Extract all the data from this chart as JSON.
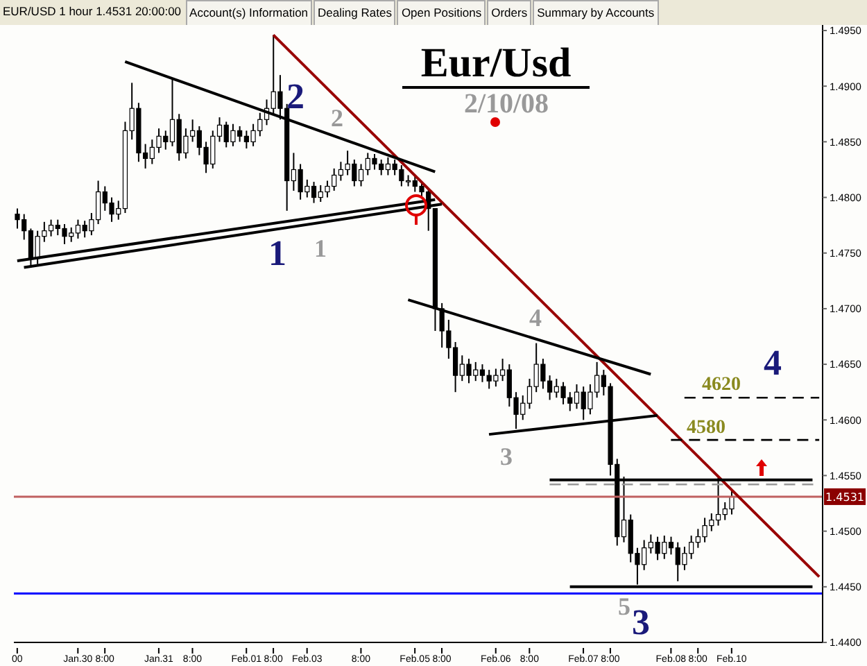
{
  "chart_data": {
    "type": "candlestick",
    "title": "Eur/Usd",
    "subtitle": "2/10/08",
    "color": "#000000",
    "categories": [
      "00",
      null,
      null,
      null,
      null,
      null,
      null,
      null,
      null,
      "Jan.30",
      null,
      null,
      null,
      "8:00",
      null,
      null,
      null,
      null,
      null,
      null,
      null,
      "Jan.31",
      null,
      null,
      null,
      null,
      "8:00",
      null,
      null,
      null,
      null,
      null,
      null,
      null,
      "Feb.01",
      null,
      null,
      null,
      "8:00",
      null,
      null,
      null,
      null,
      "Feb.03",
      null,
      null,
      null,
      null,
      null,
      null,
      null,
      "8:00",
      null,
      null,
      null,
      null,
      null,
      null,
      null,
      "Feb.05",
      null,
      null,
      null,
      "8:00",
      null,
      null,
      null,
      null,
      null,
      null,
      null,
      "Feb.06",
      null,
      null,
      null,
      null,
      "8:00",
      null,
      null,
      null,
      null,
      null,
      null,
      null,
      "Feb.07",
      null,
      null,
      null,
      "8:00",
      null,
      null,
      null,
      null,
      null,
      null,
      null,
      null,
      "Feb.08",
      null,
      null,
      null,
      "8:00",
      null,
      null,
      null,
      null,
      "Feb.10",
      null,
      null,
      null,
      null,
      null,
      null,
      null,
      null,
      null,
      null,
      null,
      null,
      null
    ],
    "ohlc": [
      [
        1.4785,
        1.479,
        1.4772,
        1.478
      ],
      [
        1.478,
        1.4785,
        1.4762,
        1.477
      ],
      [
        1.477,
        1.4772,
        1.4737,
        1.4745
      ],
      [
        1.4745,
        1.477,
        1.474,
        1.4765
      ],
      [
        1.4765,
        1.4778,
        1.476,
        1.477
      ],
      [
        1.477,
        1.478,
        1.4765,
        1.4775
      ],
      [
        1.4775,
        1.478,
        1.4766,
        1.4772
      ],
      [
        1.4772,
        1.4776,
        1.4758,
        1.4765
      ],
      [
        1.4765,
        1.4773,
        1.476,
        1.4768
      ],
      [
        1.4768,
        1.478,
        1.4763,
        1.4775
      ],
      [
        1.4775,
        1.4779,
        1.4764,
        1.477
      ],
      [
        1.477,
        1.4786,
        1.4766,
        1.478
      ],
      [
        1.478,
        1.4815,
        1.4776,
        1.4805
      ],
      [
        1.4805,
        1.481,
        1.4788,
        1.4795
      ],
      [
        1.4795,
        1.48,
        1.4778,
        1.4785
      ],
      [
        1.4785,
        1.4797,
        1.478,
        1.479
      ],
      [
        1.479,
        1.4868,
        1.4786,
        1.486
      ],
      [
        1.486,
        1.4903,
        1.4852,
        1.488
      ],
      [
        1.488,
        1.4885,
        1.4832,
        1.484
      ],
      [
        1.484,
        1.4848,
        1.4826,
        1.4835
      ],
      [
        1.4835,
        1.4852,
        1.483,
        1.4845
      ],
      [
        1.4845,
        1.4862,
        1.484,
        1.4855
      ],
      [
        1.4855,
        1.486,
        1.4843,
        1.485
      ],
      [
        1.485,
        1.4907,
        1.4846,
        1.487
      ],
      [
        1.487,
        1.4875,
        1.4833,
        1.484
      ],
      [
        1.484,
        1.4862,
        1.4835,
        1.4855
      ],
      [
        1.4855,
        1.487,
        1.485,
        1.486
      ],
      [
        1.486,
        1.4864,
        1.4838,
        1.4845
      ],
      [
        1.4845,
        1.485,
        1.4822,
        1.483
      ],
      [
        1.483,
        1.486,
        1.4826,
        1.4855
      ],
      [
        1.4855,
        1.4872,
        1.485,
        1.4865
      ],
      [
        1.4865,
        1.4868,
        1.4845,
        1.485
      ],
      [
        1.485,
        1.4866,
        1.4846,
        1.486
      ],
      [
        1.486,
        1.4864,
        1.485,
        1.4855
      ],
      [
        1.4855,
        1.486,
        1.4844,
        1.485
      ],
      [
        1.485,
        1.4866,
        1.4846,
        1.486
      ],
      [
        1.486,
        1.4876,
        1.4855,
        1.487
      ],
      [
        1.487,
        1.4888,
        1.4865,
        1.488
      ],
      [
        1.488,
        1.4946,
        1.4875,
        1.4895
      ],
      [
        1.4895,
        1.491,
        1.487,
        1.488
      ],
      [
        1.488,
        1.4884,
        1.4788,
        1.4815
      ],
      [
        1.4815,
        1.484,
        1.4806,
        1.4825
      ],
      [
        1.4825,
        1.483,
        1.4798,
        1.4805
      ],
      [
        1.4805,
        1.4816,
        1.48,
        1.481
      ],
      [
        1.481,
        1.4814,
        1.4795,
        1.48
      ],
      [
        1.48,
        1.4811,
        1.4796,
        1.4805
      ],
      [
        1.4805,
        1.4815,
        1.48,
        1.481
      ],
      [
        1.481,
        1.4826,
        1.4806,
        1.482
      ],
      [
        1.482,
        1.4832,
        1.4815,
        1.4825
      ],
      [
        1.4825,
        1.4842,
        1.482,
        1.483
      ],
      [
        1.483,
        1.4834,
        1.481,
        1.4815
      ],
      [
        1.4815,
        1.483,
        1.481,
        1.4825
      ],
      [
        1.4825,
        1.484,
        1.482,
        1.4835
      ],
      [
        1.4835,
        1.4839,
        1.4825,
        1.483
      ],
      [
        1.483,
        1.4834,
        1.482,
        1.4825
      ],
      [
        1.4825,
        1.4836,
        1.482,
        1.483
      ],
      [
        1.483,
        1.4834,
        1.482,
        1.4825
      ],
      [
        1.4825,
        1.4829,
        1.481,
        1.4815
      ],
      [
        1.4815,
        1.482,
        1.481,
        1.4815
      ],
      [
        1.4815,
        1.4819,
        1.4805,
        1.481
      ],
      [
        1.481,
        1.4814,
        1.48,
        1.4805
      ],
      [
        1.4805,
        1.4808,
        1.477,
        1.479
      ],
      [
        1.479,
        1.479,
        1.468,
        1.47
      ],
      [
        1.47,
        1.4705,
        1.4665,
        1.468
      ],
      [
        1.468,
        1.469,
        1.4655,
        1.4665
      ],
      [
        1.4665,
        1.467,
        1.4625,
        1.464
      ],
      [
        1.464,
        1.4658,
        1.4635,
        1.465
      ],
      [
        1.465,
        1.4655,
        1.4633,
        1.464
      ],
      [
        1.464,
        1.4652,
        1.4635,
        1.4645
      ],
      [
        1.4645,
        1.465,
        1.4634,
        1.464
      ],
      [
        1.464,
        1.4645,
        1.4628,
        1.4635
      ],
      [
        1.4635,
        1.4646,
        1.463,
        1.464
      ],
      [
        1.464,
        1.4655,
        1.4635,
        1.4645
      ],
      [
        1.4645,
        1.465,
        1.4612,
        1.462
      ],
      [
        1.462,
        1.4625,
        1.4592,
        1.4605
      ],
      [
        1.4605,
        1.4622,
        1.46,
        1.4615
      ],
      [
        1.4615,
        1.4637,
        1.461,
        1.463
      ],
      [
        1.463,
        1.4669,
        1.4625,
        1.465
      ],
      [
        1.465,
        1.4655,
        1.4628,
        1.4635
      ],
      [
        1.4635,
        1.464,
        1.4618,
        1.4625
      ],
      [
        1.4625,
        1.4637,
        1.462,
        1.463
      ],
      [
        1.463,
        1.4634,
        1.4614,
        1.462
      ],
      [
        1.462,
        1.4625,
        1.4608,
        1.4615
      ],
      [
        1.4615,
        1.4632,
        1.461,
        1.4625
      ],
      [
        1.4625,
        1.463,
        1.46,
        1.461
      ],
      [
        1.461,
        1.4632,
        1.4605,
        1.4625
      ],
      [
        1.4625,
        1.4652,
        1.462,
        1.464
      ],
      [
        1.464,
        1.4645,
        1.4622,
        1.463
      ],
      [
        1.463,
        1.4633,
        1.455,
        1.456
      ],
      [
        1.456,
        1.4565,
        1.4487,
        1.4495
      ],
      [
        1.4495,
        1.4549,
        1.449,
        1.451
      ],
      [
        1.451,
        1.4515,
        1.4472,
        1.448
      ],
      [
        1.448,
        1.4485,
        1.4452,
        1.447
      ],
      [
        1.447,
        1.4492,
        1.4465,
        1.4485
      ],
      [
        1.4485,
        1.4497,
        1.448,
        1.449
      ],
      [
        1.449,
        1.4495,
        1.4474,
        1.448
      ],
      [
        1.448,
        1.4496,
        1.4475,
        1.449
      ],
      [
        1.449,
        1.4495,
        1.4479,
        1.4485
      ],
      [
        1.4485,
        1.449,
        1.4455,
        1.447
      ],
      [
        1.447,
        1.4486,
        1.4465,
        1.448
      ],
      [
        1.448,
        1.4496,
        1.4475,
        1.449
      ],
      [
        1.449,
        1.4502,
        1.4485,
        1.4495
      ],
      [
        1.4495,
        1.4512,
        1.449,
        1.4505
      ],
      [
        1.4505,
        1.4516,
        1.45,
        1.451
      ],
      [
        1.451,
        1.4548,
        1.4505,
        1.4515
      ],
      [
        1.4515,
        1.4526,
        1.451,
        1.452
      ],
      [
        1.452,
        1.4536,
        1.4515,
        1.4531
      ],
      null,
      null,
      null,
      null,
      null,
      null,
      null,
      null,
      null,
      null,
      null,
      null,
      null
    ],
    "series": [
      {
        "type": "line",
        "color": "#990000",
        "line_style": "solid",
        "values": [
          null,
          null,
          null,
          null,
          null,
          null,
          null,
          null,
          null,
          null,
          null,
          null,
          null,
          null,
          null,
          null,
          null,
          null,
          null,
          null,
          null,
          null,
          null,
          null,
          null,
          null,
          null,
          null,
          null,
          null,
          null,
          null,
          null,
          null,
          null,
          null,
          null,
          null,
          1.4946,
          null,
          null,
          null,
          null,
          null,
          null,
          null,
          null,
          null,
          null,
          null,
          null,
          null,
          null,
          null,
          null,
          null,
          null,
          null,
          null,
          null,
          null,
          null,
          null,
          null,
          null,
          null,
          null,
          null,
          null,
          null,
          null,
          null,
          null,
          null,
          null,
          null,
          null,
          null,
          null,
          null,
          null,
          null,
          null,
          null,
          null,
          null,
          null,
          null,
          null,
          null,
          null,
          null,
          null,
          null,
          null,
          null,
          null,
          null,
          null,
          null,
          null,
          null,
          null,
          null,
          null,
          null,
          null,
          null,
          null,
          null,
          null,
          null,
          null,
          null,
          null,
          null,
          null,
          null,
          null,
          1.4459
        ]
      },
      {
        "type": "line",
        "color": "#000000",
        "line_style": "solid",
        "values": [
          null,
          null,
          null,
          null,
          null,
          null,
          null,
          null,
          null,
          null,
          null,
          null,
          null,
          null,
          null,
          null,
          1.4922,
          null,
          null,
          null,
          null,
          null,
          null,
          null,
          null,
          null,
          null,
          null,
          null,
          null,
          null,
          null,
          null,
          null,
          null,
          null,
          null,
          null,
          null,
          null,
          null,
          null,
          null,
          null,
          null,
          null,
          null,
          null,
          null,
          null,
          null,
          null,
          null,
          null,
          null,
          null,
          null,
          null,
          null,
          null,
          null,
          null,
          1.4823,
          null,
          null,
          null,
          null,
          null,
          null,
          null,
          null,
          null,
          null,
          null,
          null,
          null,
          null,
          null,
          null,
          null,
          null,
          null,
          null,
          null,
          null,
          null,
          null,
          null,
          null,
          null,
          null,
          null,
          null,
          null,
          null,
          null,
          null,
          null,
          null,
          null,
          null,
          null,
          null,
          null,
          null,
          null,
          null,
          null,
          null,
          null,
          null,
          null,
          null,
          null,
          null,
          null,
          null,
          null,
          null,
          null
        ]
      },
      {
        "type": "line",
        "color": "#000000",
        "line_style": "solid",
        "values": [
          1.4743,
          null,
          null,
          null,
          null,
          null,
          null,
          null,
          null,
          null,
          null,
          null,
          null,
          null,
          null,
          null,
          null,
          null,
          null,
          null,
          null,
          null,
          null,
          null,
          null,
          null,
          null,
          null,
          null,
          null,
          null,
          null,
          null,
          null,
          null,
          null,
          null,
          null,
          null,
          null,
          null,
          null,
          null,
          null,
          null,
          null,
          null,
          null,
          null,
          null,
          null,
          null,
          null,
          null,
          null,
          null,
          null,
          null,
          null,
          null,
          null,
          null,
          1.4798,
          null,
          null,
          null,
          null,
          null,
          null,
          null,
          null,
          null,
          null,
          null,
          null,
          null,
          null,
          null,
          null,
          null,
          null,
          null,
          null,
          null,
          null,
          null,
          null,
          null,
          null,
          null,
          null,
          null,
          null,
          null,
          null,
          null,
          null,
          null,
          null,
          null,
          null,
          null,
          null,
          null,
          null,
          null,
          null,
          null,
          null,
          null,
          null,
          null,
          null,
          null,
          null,
          null,
          null,
          null,
          null,
          null
        ]
      },
      {
        "type": "line",
        "color": "#000000",
        "line_style": "solid",
        "values": [
          null,
          1.4737,
          null,
          null,
          null,
          null,
          null,
          null,
          null,
          null,
          null,
          null,
          null,
          null,
          null,
          null,
          null,
          null,
          null,
          null,
          null,
          null,
          null,
          null,
          null,
          null,
          null,
          null,
          null,
          null,
          null,
          null,
          null,
          null,
          null,
          null,
          null,
          null,
          null,
          null,
          null,
          null,
          null,
          null,
          null,
          null,
          null,
          null,
          null,
          null,
          null,
          null,
          null,
          null,
          null,
          null,
          null,
          null,
          null,
          null,
          null,
          null,
          null,
          1.4794,
          null,
          null,
          null,
          null,
          null,
          null,
          null,
          null,
          null,
          null,
          null,
          null,
          null,
          null,
          null,
          null,
          null,
          null,
          null,
          null,
          null,
          null,
          null,
          null,
          null,
          null,
          null,
          null,
          null,
          null,
          null,
          null,
          null,
          null,
          null,
          null,
          null,
          null,
          null,
          null,
          null,
          null,
          null,
          null,
          null,
          null,
          null,
          null,
          null,
          null,
          null,
          null,
          null,
          null,
          null,
          null
        ]
      },
      {
        "type": "line",
        "color": "#000000",
        "line_style": "solid",
        "values": [
          null,
          null,
          null,
          null,
          null,
          null,
          null,
          null,
          null,
          null,
          null,
          null,
          null,
          null,
          null,
          null,
          null,
          null,
          null,
          null,
          null,
          null,
          null,
          null,
          null,
          null,
          null,
          null,
          null,
          null,
          null,
          null,
          null,
          null,
          null,
          null,
          null,
          null,
          null,
          null,
          null,
          null,
          null,
          null,
          null,
          null,
          null,
          null,
          null,
          null,
          null,
          null,
          null,
          null,
          null,
          null,
          null,
          null,
          1.4708,
          null,
          null,
          null,
          null,
          null,
          null,
          null,
          null,
          null,
          null,
          null,
          null,
          null,
          null,
          null,
          null,
          null,
          null,
          null,
          null,
          null,
          null,
          null,
          null,
          null,
          null,
          null,
          null,
          null,
          null,
          null,
          null,
          null,
          null,
          null,
          1.4641,
          null,
          null,
          null,
          null,
          null,
          null,
          null,
          null,
          null,
          null,
          null,
          null,
          null,
          null,
          null,
          null,
          null,
          null,
          null,
          null,
          null,
          null,
          null,
          null,
          null
        ]
      },
      {
        "type": "line",
        "color": "#000000",
        "line_style": "solid",
        "values": [
          null,
          null,
          null,
          null,
          null,
          null,
          null,
          null,
          null,
          null,
          null,
          null,
          null,
          null,
          null,
          null,
          null,
          null,
          null,
          null,
          null,
          null,
          null,
          null,
          null,
          null,
          null,
          null,
          null,
          null,
          null,
          null,
          null,
          null,
          null,
          null,
          null,
          null,
          null,
          null,
          null,
          null,
          null,
          null,
          null,
          null,
          null,
          null,
          null,
          null,
          null,
          null,
          null,
          null,
          null,
          null,
          null,
          null,
          null,
          null,
          null,
          null,
          null,
          null,
          null,
          null,
          null,
          null,
          null,
          null,
          1.4587,
          null,
          null,
          null,
          null,
          null,
          null,
          null,
          null,
          null,
          null,
          null,
          null,
          null,
          null,
          null,
          null,
          null,
          null,
          null,
          null,
          null,
          null,
          null,
          null,
          1.4604,
          null,
          null,
          null,
          null,
          null,
          null,
          null,
          null,
          null,
          null,
          null,
          null,
          null,
          null,
          null,
          null,
          null,
          null,
          null,
          null,
          null,
          null,
          null,
          null
        ]
      },
      {
        "type": "line",
        "color": "#000000",
        "line_style": "solid",
        "values": [
          null,
          null,
          null,
          null,
          null,
          null,
          null,
          null,
          null,
          null,
          null,
          null,
          null,
          null,
          null,
          null,
          null,
          null,
          null,
          null,
          null,
          null,
          null,
          null,
          null,
          null,
          null,
          null,
          null,
          null,
          null,
          null,
          null,
          null,
          null,
          null,
          null,
          null,
          null,
          null,
          null,
          null,
          null,
          null,
          null,
          null,
          null,
          null,
          null,
          null,
          null,
          null,
          null,
          null,
          null,
          null,
          null,
          null,
          null,
          null,
          null,
          null,
          null,
          null,
          null,
          null,
          null,
          null,
          null,
          null,
          null,
          null,
          null,
          null,
          null,
          null,
          null,
          null,
          null,
          1.4546,
          null,
          null,
          null,
          null,
          null,
          null,
          null,
          null,
          null,
          null,
          null,
          null,
          null,
          null,
          null,
          null,
          null,
          null,
          null,
          null,
          null,
          null,
          null,
          null,
          null,
          null,
          null,
          null,
          null,
          null,
          null,
          null,
          null,
          null,
          null,
          null,
          null,
          null,
          1.4546,
          null
        ]
      },
      {
        "type": "line",
        "color": "#999999",
        "line_style": "dashed",
        "values": [
          null,
          null,
          null,
          null,
          null,
          null,
          null,
          null,
          null,
          null,
          null,
          null,
          null,
          null,
          null,
          null,
          null,
          null,
          null,
          null,
          null,
          null,
          null,
          null,
          null,
          null,
          null,
          null,
          null,
          null,
          null,
          null,
          null,
          null,
          null,
          null,
          null,
          null,
          null,
          null,
          null,
          null,
          null,
          null,
          null,
          null,
          null,
          null,
          null,
          null,
          null,
          null,
          null,
          null,
          null,
          null,
          null,
          null,
          null,
          null,
          null,
          null,
          null,
          null,
          null,
          null,
          null,
          null,
          null,
          null,
          null,
          null,
          null,
          null,
          null,
          null,
          null,
          null,
          null,
          1.4542,
          null,
          null,
          null,
          null,
          null,
          null,
          null,
          null,
          null,
          null,
          null,
          null,
          null,
          null,
          null,
          null,
          null,
          null,
          null,
          null,
          null,
          null,
          null,
          null,
          null,
          null,
          null,
          null,
          null,
          null,
          null,
          null,
          null,
          null,
          null,
          null,
          null,
          null,
          null,
          1.4542
        ]
      },
      {
        "type": "line",
        "color": "#000000",
        "line_style": "dashed",
        "values": [
          null,
          null,
          null,
          null,
          null,
          null,
          null,
          null,
          null,
          null,
          null,
          null,
          null,
          null,
          null,
          null,
          null,
          null,
          null,
          null,
          null,
          null,
          null,
          null,
          null,
          null,
          null,
          null,
          null,
          null,
          null,
          null,
          null,
          null,
          null,
          null,
          null,
          null,
          null,
          null,
          null,
          null,
          null,
          null,
          null,
          null,
          null,
          null,
          null,
          null,
          null,
          null,
          null,
          null,
          null,
          null,
          null,
          null,
          null,
          null,
          null,
          null,
          null,
          null,
          null,
          null,
          null,
          null,
          null,
          null,
          null,
          null,
          null,
          null,
          null,
          null,
          null,
          null,
          null,
          null,
          null,
          null,
          null,
          null,
          null,
          null,
          null,
          null,
          null,
          null,
          null,
          null,
          null,
          null,
          null,
          null,
          null,
          null,
          null,
          1.462,
          null,
          null,
          null,
          null,
          null,
          null,
          null,
          null,
          null,
          null,
          null,
          null,
          null,
          null,
          null,
          null,
          null,
          null,
          null,
          1.462
        ]
      },
      {
        "type": "line",
        "color": "#000000",
        "line_style": "dashed",
        "values": [
          null,
          null,
          null,
          null,
          null,
          null,
          null,
          null,
          null,
          null,
          null,
          null,
          null,
          null,
          null,
          null,
          null,
          null,
          null,
          null,
          null,
          null,
          null,
          null,
          null,
          null,
          null,
          null,
          null,
          null,
          null,
          null,
          null,
          null,
          null,
          null,
          null,
          null,
          null,
          null,
          null,
          null,
          null,
          null,
          null,
          null,
          null,
          null,
          null,
          null,
          null,
          null,
          null,
          null,
          null,
          null,
          null,
          null,
          null,
          null,
          null,
          null,
          null,
          null,
          null,
          null,
          null,
          null,
          null,
          null,
          null,
          null,
          null,
          null,
          null,
          null,
          null,
          null,
          null,
          null,
          null,
          null,
          null,
          null,
          null,
          null,
          null,
          null,
          null,
          null,
          null,
          null,
          null,
          null,
          null,
          null,
          null,
          1.4582,
          null,
          null,
          null,
          null,
          null,
          null,
          null,
          null,
          null,
          null,
          null,
          null,
          null,
          null,
          null,
          null,
          null,
          null,
          null,
          null,
          null,
          1.4582
        ]
      },
      {
        "type": "line",
        "color": "#000000",
        "line_style": "solid",
        "values": [
          null,
          null,
          null,
          null,
          null,
          null,
          null,
          null,
          null,
          null,
          null,
          null,
          null,
          null,
          null,
          null,
          null,
          null,
          null,
          null,
          null,
          null,
          null,
          null,
          null,
          null,
          null,
          null,
          null,
          null,
          null,
          null,
          null,
          null,
          null,
          null,
          null,
          null,
          null,
          null,
          null,
          null,
          null,
          null,
          null,
          null,
          null,
          null,
          null,
          null,
          null,
          null,
          null,
          null,
          null,
          null,
          null,
          null,
          null,
          null,
          null,
          null,
          null,
          null,
          null,
          null,
          null,
          null,
          null,
          null,
          null,
          null,
          null,
          null,
          null,
          null,
          null,
          null,
          null,
          null,
          null,
          null,
          1.445,
          null,
          null,
          null,
          null,
          null,
          null,
          null,
          null,
          null,
          null,
          null,
          null,
          null,
          null,
          null,
          null,
          null,
          null,
          null,
          null,
          null,
          null,
          null,
          null,
          null,
          null,
          null,
          null,
          null,
          null,
          null,
          null,
          null,
          null,
          null,
          1.445,
          null
        ]
      }
    ],
    "ylim": [
      1.44,
      1.4955
    ],
    "yticks": [
      {
        "value": 1.44,
        "label": "1.4400"
      },
      {
        "value": 1.445,
        "label": "1.4450"
      },
      {
        "value": 1.45,
        "label": "1.4500"
      },
      {
        "value": 1.455,
        "label": "1.4550"
      },
      {
        "value": 1.46,
        "label": "1.4600"
      },
      {
        "value": 1.465,
        "label": "1.4650"
      },
      {
        "value": 1.47,
        "label": "1.4700"
      },
      {
        "value": 1.475,
        "label": "1.4750"
      },
      {
        "value": 1.48,
        "label": "1.4800"
      },
      {
        "value": 1.485,
        "label": "1.4850"
      },
      {
        "value": 1.49,
        "label": "1.4900"
      },
      {
        "value": 1.495,
        "label": "1.4950"
      }
    ],
    "ref_lines": [
      {
        "axis": "y",
        "value": 1.4531,
        "label": "1.4531",
        "color": "#c06060"
      },
      {
        "axis": "y",
        "value": 1.4444,
        "color": "#0000ff"
      }
    ],
    "annotations": [
      "EUR/USD 1 hour 1.4531 20:00:00",
      "Account(s) Information",
      "Dealing Rates",
      "Open Positions",
      "Orders",
      "Summary by Accounts",
      "2",
      "2",
      "1",
      "1",
      "4",
      "3",
      "4",
      "4620",
      "4580",
      "5",
      "3"
    ],
    "grid": false,
    "legend": false
  }
}
